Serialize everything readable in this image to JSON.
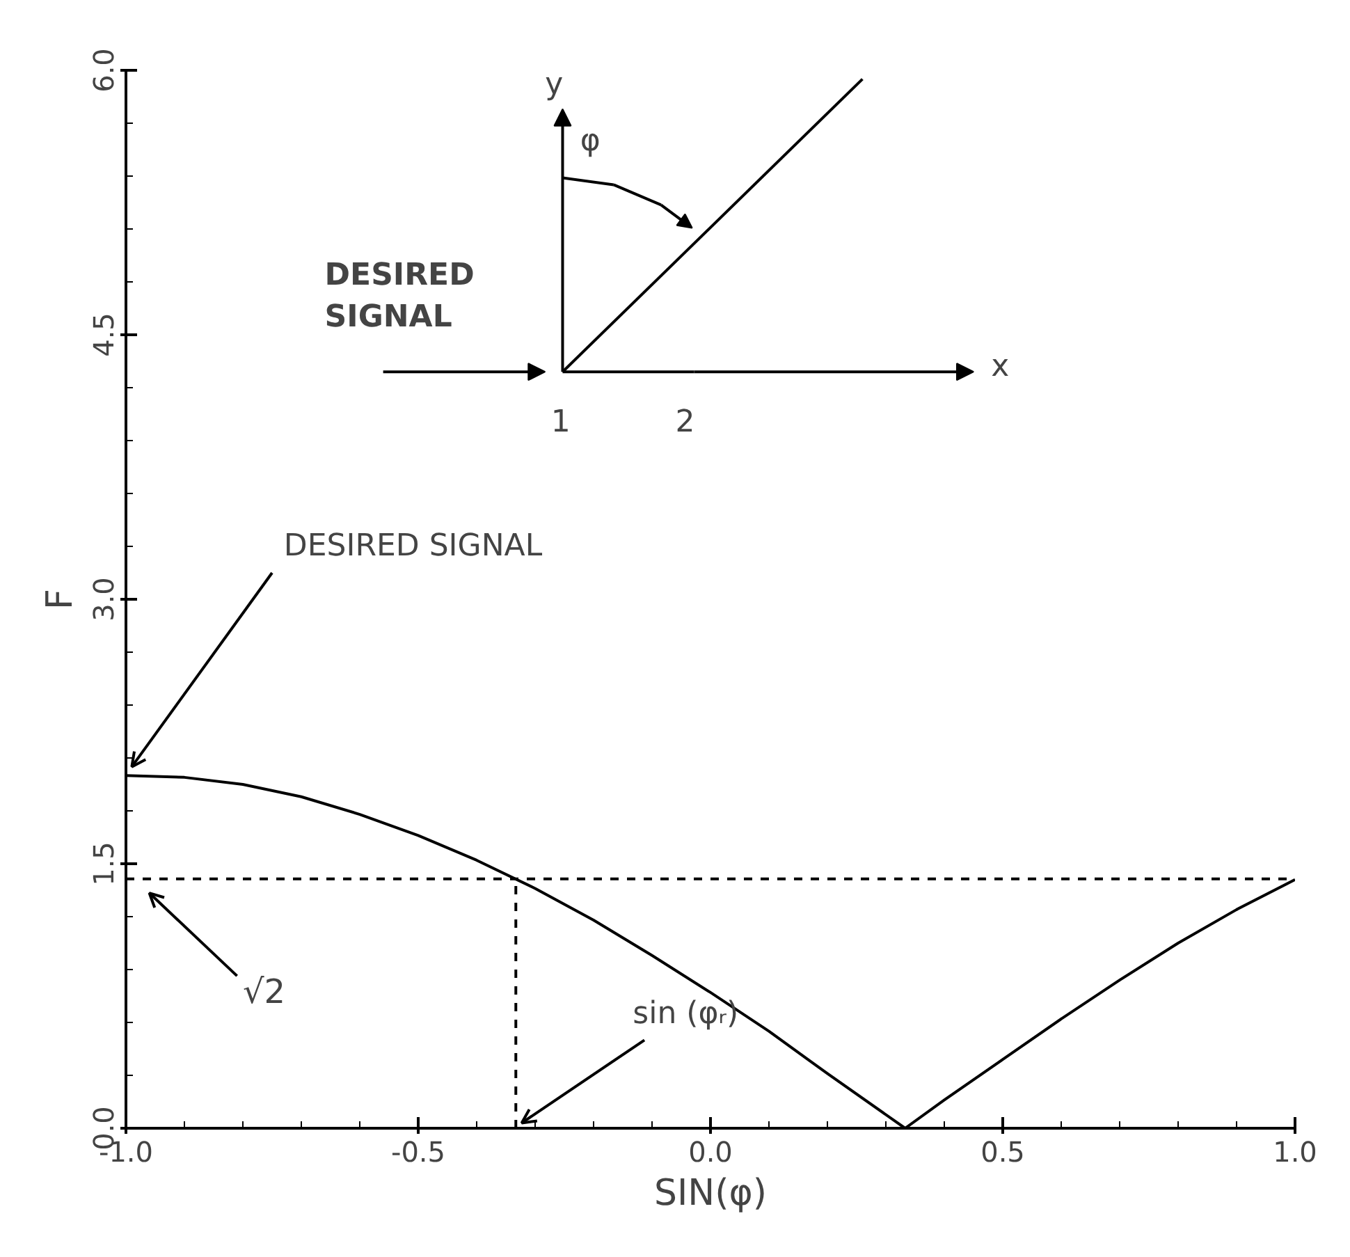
{
  "chart_data": {
    "type": "line",
    "xlabel": "SIN(φ)",
    "ylabel": "F",
    "x": [
      -1.0,
      -0.9,
      -0.8,
      -0.7,
      -0.6,
      -0.5,
      -0.4,
      -0.3,
      -0.2,
      -0.1,
      0.0,
      0.1,
      0.2,
      0.333,
      0.4,
      0.5,
      0.6,
      0.7,
      0.8,
      0.9,
      1.0
    ],
    "series": [
      {
        "color": "#000000",
        "values": [
          2.0,
          1.99,
          1.95,
          1.88,
          1.78,
          1.66,
          1.52,
          1.36,
          1.18,
          0.98,
          0.77,
          0.55,
          0.31,
          0.0,
          0.16,
          0.39,
          0.62,
          0.84,
          1.05,
          1.24,
          1.41
        ]
      }
    ],
    "xlim": [
      -1.0,
      1.0
    ],
    "ylim": [
      0.0,
      6.0
    ],
    "xticks": [
      {
        "value": -1.0,
        "label": "-1.0"
      },
      {
        "value": -0.5,
        "label": "-0.5"
      },
      {
        "value": 0.0,
        "label": "0.0"
      },
      {
        "value": 0.5,
        "label": "0.5"
      },
      {
        "value": 1.0,
        "label": "1.0"
      }
    ],
    "yticks": [
      {
        "value": 0.0,
        "label": "0.0"
      },
      {
        "value": 1.5,
        "label": "1.5"
      },
      {
        "value": 3.0,
        "label": "3.0"
      },
      {
        "value": 4.5,
        "label": "4.5"
      },
      {
        "value": 6.0,
        "label": "6.0"
      }
    ],
    "ref_lines": [
      {
        "axis": "y",
        "value": 1.414,
        "label": "√2",
        "line_style": "dashed"
      },
      {
        "axis": "x",
        "value": -0.333,
        "label": "sin (φᵣ)",
        "line_style": "dashed"
      }
    ],
    "annotations": [
      {
        "text": "DESIRED SIGNAL",
        "x": -1.0,
        "y": 2.0
      },
      "DESIRED\nSIGNAL",
      "y",
      "x",
      "φ",
      "1",
      "2"
    ],
    "grid": false,
    "marker": "none",
    "line_style": "solid"
  }
}
